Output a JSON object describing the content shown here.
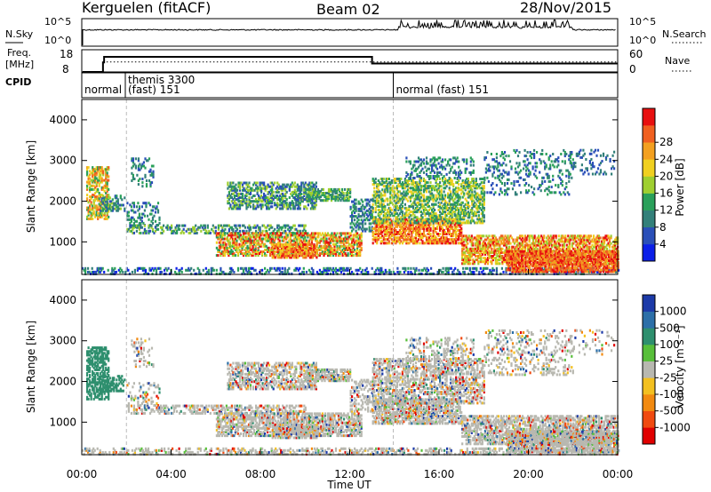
{
  "chart_data": {
    "type": "heatmap",
    "header": {
      "station": "Kerguelen (fitACF)",
      "beam": "Beam 02",
      "date": "28/Nov/2015"
    },
    "nsky_panel": {
      "left_label": "N.Sky",
      "right_label": "N.Search",
      "ticks": [
        "10^5",
        "10^0"
      ]
    },
    "freq_panel": {
      "left_label_1": "Freq.",
      "left_label_2": "[MHz]",
      "right_label": "Nave",
      "left_ticks": [
        18,
        8
      ],
      "right_ticks": [
        60,
        0
      ],
      "freq_steps": [
        {
          "t": 0.0,
          "f": 8
        },
        {
          "t": 0.95,
          "f": 12.3
        },
        {
          "t": 1.0,
          "f": 14.8
        },
        {
          "t": 13.0,
          "f": 11.8
        },
        {
          "t": 24.0,
          "f": 11.8
        }
      ],
      "nave_level": 27
    },
    "cpid_panel": {
      "label": "CPID",
      "segments": [
        {
          "t": 0.0,
          "text": "normal",
          "text2": ""
        },
        {
          "t": 1.95,
          "text": "themis 3300",
          "text2": "(fast) 151"
        },
        {
          "t": 13.95,
          "text": "normal (fast) 151",
          "text2": ""
        }
      ]
    },
    "xaxis": {
      "label": "Time UT",
      "range": [
        0,
        24
      ],
      "ticks": [
        {
          "v": 0,
          "l": "00:00"
        },
        {
          "v": 4,
          "l": "04:00"
        },
        {
          "v": 8,
          "l": "08:00"
        },
        {
          "v": 12,
          "l": "12:00"
        },
        {
          "v": 16,
          "l": "16:00"
        },
        {
          "v": 20,
          "l": "20:00"
        },
        {
          "v": 24,
          "l": "00:00"
        }
      ]
    },
    "yaxis": {
      "label": "Slant Range [km]",
      "range": [
        200,
        4500
      ],
      "ticks": [
        1000,
        2000,
        3000,
        4000
      ]
    },
    "power": {
      "colorbar_label": "Power [dB]",
      "ticks": [
        4,
        8,
        12,
        16,
        20,
        24,
        28
      ],
      "colors": [
        "#0b1fe8",
        "#2a4fb8",
        "#33807a",
        "#2aa05a",
        "#9fcf30",
        "#f0d020",
        "#f3a020",
        "#f06020",
        "#e81010"
      ]
    },
    "velocity": {
      "colorbar_label": "Velocity [m s⁻¹]",
      "ticks": [
        "1000",
        "500",
        "100",
        "25",
        "-25",
        "-100",
        "-500",
        "-1000"
      ],
      "colors": [
        "#1c3aa8",
        "#2c6fa8",
        "#2e8f6e",
        "#58bf3a",
        "#b8b8b0",
        "#f3c020",
        "#f28a10",
        "#f04a10",
        "#e00000"
      ]
    }
  }
}
